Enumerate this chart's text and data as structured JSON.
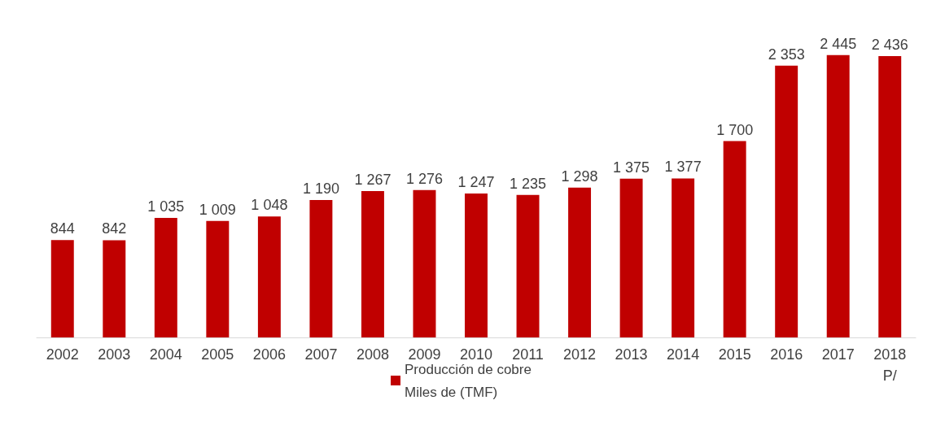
{
  "chart_data": {
    "type": "bar",
    "categories": [
      "2002",
      "2003",
      "2004",
      "2005",
      "2006",
      "2007",
      "2008",
      "2009",
      "2010",
      "2011",
      "2012",
      "2013",
      "2014",
      "2015",
      "2016",
      "2017",
      "2018\nP/"
    ],
    "series": [
      {
        "name": "Producción de cobre\nMiles de (TMF)",
        "color": "#c00000",
        "values": [
          844,
          842,
          1035,
          1009,
          1048,
          1190,
          1267,
          1276,
          1247,
          1235,
          1298,
          1375,
          1377,
          1700,
          2353,
          2445,
          2436
        ],
        "value_labels": [
          "844",
          "842",
          "1 035",
          "1 009",
          "1 048",
          "1 190",
          "1 267",
          "1 276",
          "1 247",
          "1 235",
          "1 298",
          "1 375",
          "1 377",
          "1 700",
          "2 353",
          "2 445",
          "2 436"
        ]
      }
    ],
    "legend": "bottom",
    "grid": false,
    "tick_labels": "x"
  }
}
